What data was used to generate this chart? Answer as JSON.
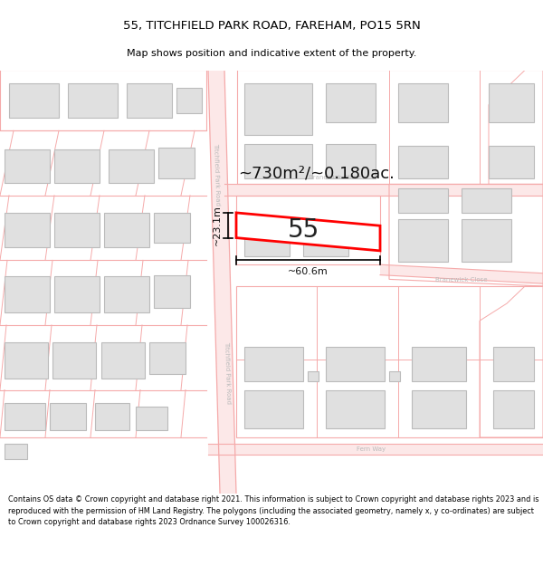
{
  "title_line1": "55, TITCHFIELD PARK ROAD, FAREHAM, PO15 5RN",
  "title_line2": "Map shows position and indicative extent of the property.",
  "footer_text": "Contains OS data © Crown copyright and database right 2021. This information is subject to Crown copyright and database rights 2023 and is reproduced with the permission of HM Land Registry. The polygons (including the associated geometry, namely x, y co-ordinates) are subject to Crown copyright and database rights 2023 Ordnance Survey 100026316.",
  "area_text": "~730m²/~0.180ac.",
  "dim_width": "~60.6m",
  "dim_height": "~23.1m",
  "bg_color": "#ffffff",
  "road_line_color": "#f5aaaa",
  "road_fill_color": "#fce8e8",
  "building_fill": "#e0e0e0",
  "building_edge": "#bbbbbb",
  "highlight_color": "#ff0000",
  "street_label_color": "#bbbbbb",
  "title_color": "#000000"
}
